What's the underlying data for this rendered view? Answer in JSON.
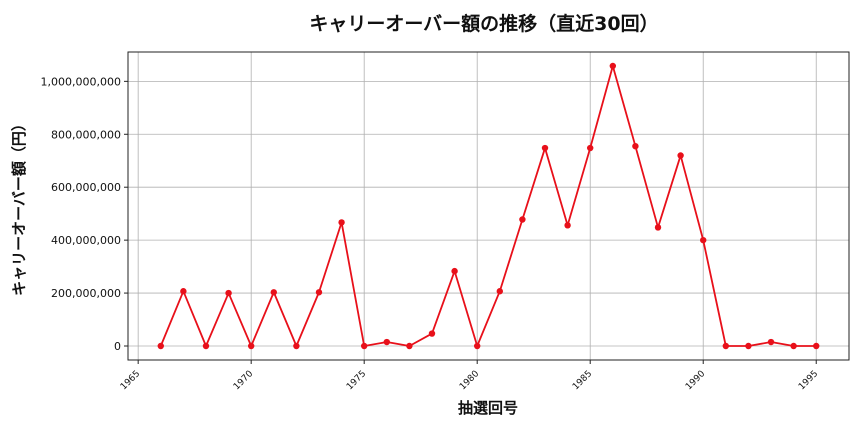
{
  "chart_data": {
    "type": "line",
    "title": "キャリーオーバー額の推移（直近30回）",
    "xlabel": "抽選回号",
    "ylabel": "キャリーオーバー額（円）",
    "x": [
      1966,
      1967,
      1968,
      1969,
      1970,
      1971,
      1972,
      1973,
      1974,
      1975,
      1976,
      1977,
      1978,
      1979,
      1980,
      1981,
      1982,
      1983,
      1984,
      1985,
      1986,
      1987,
      1988,
      1989,
      1990,
      1991,
      1992,
      1993,
      1994,
      1995
    ],
    "series": [
      {
        "values": [
          0,
          207000000,
          0,
          200000000,
          0,
          203000000,
          0,
          203000000,
          467000000,
          0,
          15000000,
          0,
          47000000,
          283000000,
          0,
          207000000,
          478000000,
          748000000,
          456000000,
          748000000,
          1058000000,
          755000000,
          448000000,
          720000000,
          400000000,
          0,
          0,
          15000000,
          0,
          0
        ]
      }
    ],
    "xlim": [
      1964.55,
      1996.45
    ],
    "ylim": [
      -52900000,
      1110900000
    ],
    "xticks": [
      1965,
      1970,
      1975,
      1980,
      1985,
      1990,
      1995
    ],
    "xtick_labels": [
      "1965",
      "1970",
      "1975",
      "1980",
      "1985",
      "1990",
      "1995"
    ],
    "yticks": [
      0,
      200000000,
      400000000,
      600000000,
      800000000,
      1000000000
    ],
    "ytick_labels": [
      "0",
      "200,000,000",
      "400,000,000",
      "600,000,000",
      "800,000,000",
      "1,000,000,000"
    ],
    "grid": true,
    "line_color": "#e8101a",
    "marker": "circle"
  }
}
